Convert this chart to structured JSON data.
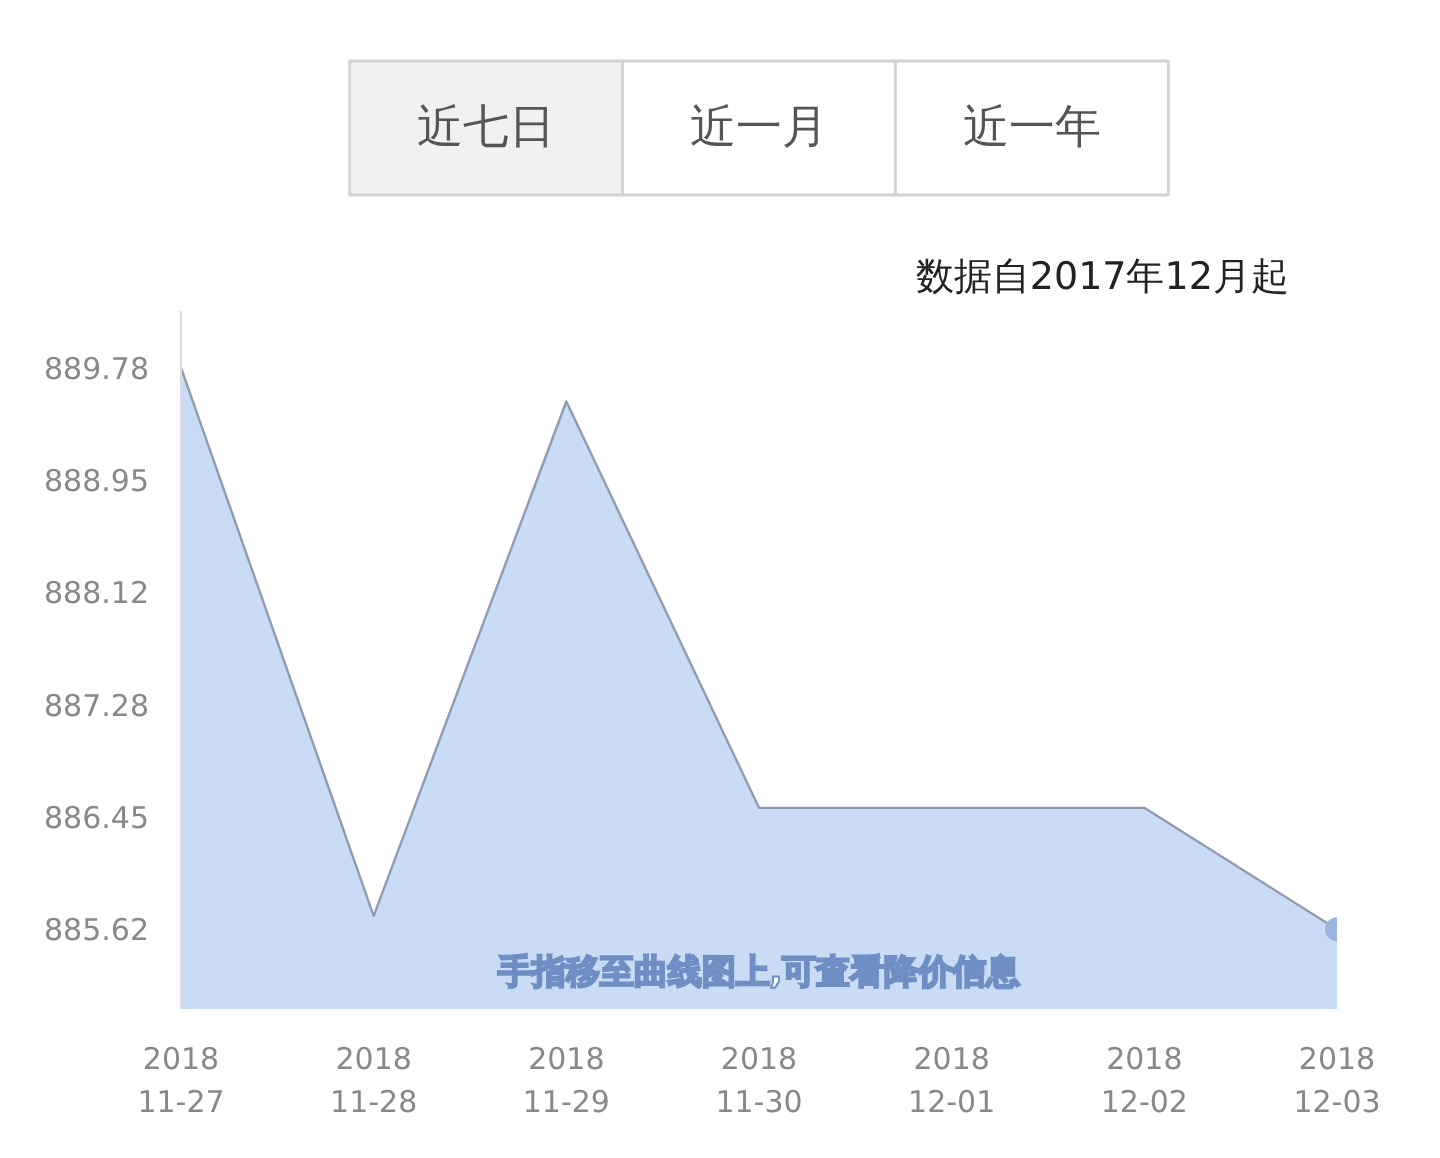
{
  "chart_data": {
    "type": "area",
    "subtitle": "数据自2017年12月起",
    "annotations": [
      "近七日",
      "近一月",
      "近一年",
      "手指移至曲线图上,可查看降价信息"
    ],
    "x": [
      "2018-11-27",
      "2018-11-28",
      "2018-11-29",
      "2018-11-30",
      "2018-12-01",
      "2018-12-02",
      "2018-12-03"
    ],
    "series": [
      {
        "color": "#c9dbf5",
        "values": [
          889.78,
          885.72,
          889.53,
          886.52,
          886.52,
          886.52,
          885.62
        ]
      },
      {
        "type": "scatter",
        "color": "#9bb3e0",
        "x": [
          "2018-12-03"
        ],
        "values": [
          885.62
        ]
      }
    ],
    "xlim": [
      "2018-11-27",
      "2018-12-03"
    ],
    "xticks": [
      {
        "value": "2018-11-27",
        "label": "2018\n11-27"
      },
      {
        "value": "2018-11-28",
        "label": "2018\n11-28"
      },
      {
        "value": "2018-11-29",
        "label": "2018\n11-29"
      },
      {
        "value": "2018-11-30",
        "label": "2018\n11-30"
      },
      {
        "value": "2018-12-01",
        "label": "2018\n12-01"
      },
      {
        "value": "2018-12-02",
        "label": "2018\n12-02"
      },
      {
        "value": "2018-12-03",
        "label": "2018\n12-03"
      }
    ],
    "ylim": [
      885.03,
      890.2
    ],
    "yticks": [
      885.62,
      886.45,
      887.28,
      888.12,
      888.95,
      889.78
    ]
  }
}
